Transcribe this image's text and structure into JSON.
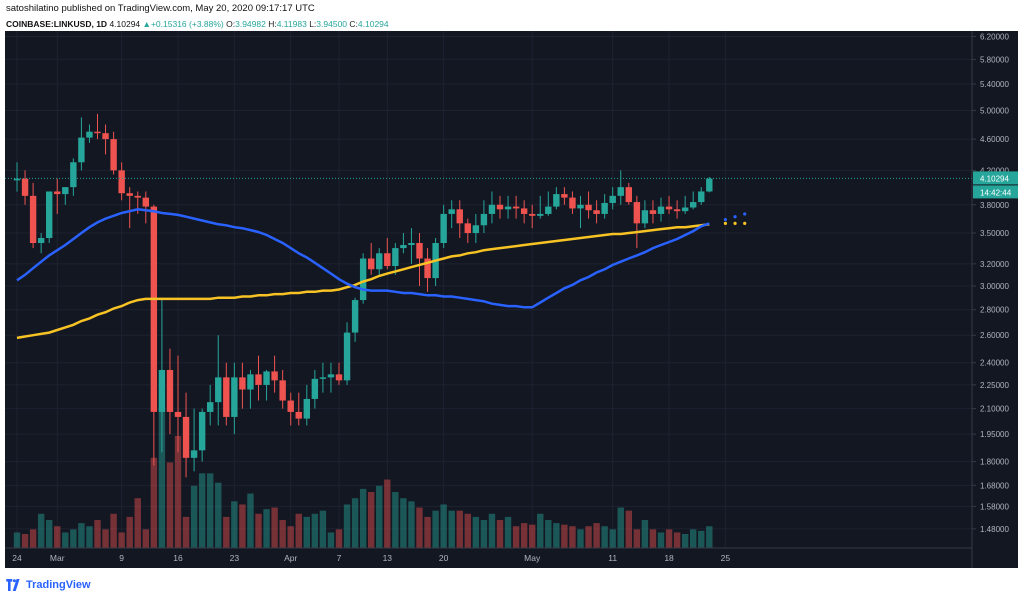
{
  "header": {
    "publisher_line": "satoshilatino published on TradingView.com, May 20, 2020 09:17:17 UTC",
    "symbol": "COINBASE:LINKUSD, 1D",
    "last": "4.10294",
    "change": "+0.15316 (+3.88%)",
    "o_label": "O:",
    "o_value": "3.94982",
    "h_label": "H:",
    "h_value": "4.11983",
    "l_label": "L:",
    "l_value": "3.94500",
    "c_label": "C:",
    "c_value": "4.10294"
  },
  "footer": {
    "brand": "TradingView"
  },
  "colors": {
    "background": "#131722",
    "up": "#26a69a",
    "down": "#ef5350",
    "ma_fast": "#2962ff",
    "ma_slow": "#f7c324",
    "price_line": "#26a69a",
    "axis_text": "#b2b5be"
  },
  "price_badge": {
    "price": "4.10294",
    "countdown": "14:42:44"
  },
  "chart_data": {
    "type": "candlestick",
    "symbol": "COINBASE:LINKUSD",
    "interval": "1D",
    "y_scale": "log",
    "ylim": [
      1.4,
      6.3
    ],
    "y_ticks": [
      "6.20000",
      "5.80000",
      "5.40000",
      "5.00000",
      "4.60000",
      "4.20000",
      "3.80000",
      "3.50000",
      "3.20000",
      "3.00000",
      "2.80000",
      "2.60000",
      "2.40000",
      "2.25000",
      "2.10000",
      "1.95000",
      "1.80000",
      "1.68000",
      "1.58000",
      "1.48000"
    ],
    "x_ticks": [
      "24",
      "Mar",
      "9",
      "16",
      "23",
      "Apr",
      "7",
      "13",
      "20",
      "May",
      "11",
      "18",
      "25"
    ],
    "x_tick_day_index": [
      0,
      5,
      13,
      20,
      27,
      34,
      40,
      46,
      53,
      64,
      74,
      81,
      88
    ],
    "dates": [
      "02-24",
      "02-25",
      "02-26",
      "02-27",
      "02-28",
      "02-29",
      "03-01",
      "03-02",
      "03-03",
      "03-04",
      "03-05",
      "03-06",
      "03-07",
      "03-08",
      "03-09",
      "03-10",
      "03-11",
      "03-12",
      "03-13",
      "03-14",
      "03-15",
      "03-16",
      "03-17",
      "03-18",
      "03-19",
      "03-20",
      "03-21",
      "03-22",
      "03-23",
      "03-24",
      "03-25",
      "03-26",
      "03-27",
      "03-28",
      "03-29",
      "03-30",
      "03-31",
      "04-01",
      "04-02",
      "04-03",
      "04-04",
      "04-05",
      "04-06",
      "04-07",
      "04-08",
      "04-09",
      "04-10",
      "04-11",
      "04-12",
      "04-13",
      "04-14",
      "04-15",
      "04-16",
      "04-17",
      "04-18",
      "04-19",
      "04-20",
      "04-21",
      "04-22",
      "04-23",
      "04-24",
      "04-25",
      "04-26",
      "04-27",
      "04-28",
      "04-29",
      "04-30",
      "05-01",
      "05-02",
      "05-03",
      "05-04",
      "05-05",
      "05-06",
      "05-07",
      "05-08",
      "05-09",
      "05-10",
      "05-11",
      "05-12",
      "05-13",
      "05-14",
      "05-15",
      "05-16",
      "05-17",
      "05-18",
      "05-19",
      "05-20"
    ],
    "open": [
      4.08,
      4.1,
      3.9,
      3.4,
      3.45,
      3.95,
      3.92,
      4.0,
      4.3,
      4.62,
      4.7,
      4.68,
      4.6,
      4.2,
      3.93,
      3.9,
      3.88,
      3.78,
      2.08,
      2.35,
      2.08,
      2.05,
      1.82,
      1.86,
      2.08,
      2.14,
      2.3,
      2.05,
      2.3,
      2.22,
      2.32,
      2.25,
      2.34,
      2.28,
      2.15,
      2.08,
      2.04,
      2.16,
      2.29,
      2.3,
      2.32,
      2.28,
      2.62,
      2.88,
      3.25,
      3.15,
      3.3,
      3.18,
      3.35,
      3.38,
      3.4,
      3.25,
      3.07,
      3.4,
      3.7,
      3.75,
      3.6,
      3.5,
      3.58,
      3.7,
      3.8,
      3.75,
      3.78,
      3.76,
      3.7,
      3.68,
      3.7,
      3.78,
      3.92,
      3.88,
      3.76,
      3.8,
      3.74,
      3.7,
      3.82,
      3.9,
      4.0,
      3.83,
      3.6,
      3.74,
      3.7,
      3.78,
      3.75,
      3.73,
      3.77,
      3.83,
      3.95
    ],
    "high": [
      4.3,
      4.2,
      4.05,
      3.5,
      3.95,
      4.1,
      4.0,
      4.35,
      4.9,
      4.8,
      4.95,
      4.8,
      4.7,
      4.3,
      4.0,
      3.95,
      3.95,
      3.8,
      2.9,
      2.5,
      2.45,
      2.2,
      2.1,
      2.1,
      2.25,
      2.6,
      2.4,
      2.4,
      2.4,
      2.35,
      2.45,
      2.35,
      2.45,
      2.35,
      2.2,
      2.2,
      2.25,
      2.35,
      2.4,
      2.4,
      2.4,
      2.7,
      2.9,
      3.3,
      3.4,
      3.35,
      3.45,
      3.4,
      3.5,
      3.55,
      3.5,
      3.35,
      3.45,
      3.8,
      3.85,
      3.85,
      3.65,
      3.7,
      3.85,
      3.95,
      3.9,
      3.9,
      3.9,
      3.85,
      3.8,
      3.9,
      3.95,
      4.0,
      4.0,
      3.95,
      3.9,
      3.95,
      3.85,
      3.92,
      4.0,
      4.2,
      4.05,
      3.9,
      3.85,
      3.85,
      3.88,
      3.9,
      3.85,
      3.9,
      3.95,
      4.0,
      4.12
    ],
    "low": [
      3.95,
      3.8,
      3.35,
      3.3,
      3.4,
      3.7,
      3.8,
      3.9,
      4.2,
      4.55,
      4.6,
      4.4,
      4.15,
      3.85,
      3.55,
      3.7,
      3.6,
      1.78,
      1.85,
      1.95,
      1.85,
      1.72,
      1.75,
      1.8,
      2.0,
      2.0,
      2.0,
      1.95,
      2.1,
      2.1,
      2.15,
      2.15,
      2.2,
      2.1,
      2.0,
      2.0,
      2.0,
      2.1,
      2.2,
      2.2,
      2.25,
      2.25,
      2.55,
      2.85,
      3.1,
      3.1,
      3.15,
      3.1,
      3.3,
      3.2,
      3.0,
      2.95,
      3.0,
      3.35,
      3.55,
      3.45,
      3.4,
      3.4,
      3.5,
      3.6,
      3.65,
      3.65,
      3.65,
      3.6,
      3.55,
      3.65,
      3.68,
      3.75,
      3.8,
      3.7,
      3.55,
      3.65,
      3.6,
      3.65,
      3.75,
      3.8,
      3.8,
      3.35,
      3.55,
      3.6,
      3.62,
      3.7,
      3.65,
      3.7,
      3.75,
      3.8,
      3.94
    ],
    "close": [
      4.1,
      3.9,
      3.4,
      3.45,
      3.95,
      3.92,
      4.0,
      4.3,
      4.62,
      4.7,
      4.68,
      4.6,
      4.2,
      3.93,
      3.9,
      3.88,
      3.78,
      2.08,
      2.35,
      2.08,
      2.05,
      1.82,
      1.86,
      2.08,
      2.14,
      2.3,
      2.05,
      2.3,
      2.22,
      2.32,
      2.25,
      2.34,
      2.28,
      2.15,
      2.08,
      2.04,
      2.16,
      2.29,
      2.3,
      2.32,
      2.28,
      2.62,
      2.88,
      3.25,
      3.15,
      3.3,
      3.18,
      3.35,
      3.38,
      3.4,
      3.25,
      3.07,
      3.4,
      3.7,
      3.75,
      3.6,
      3.5,
      3.58,
      3.7,
      3.8,
      3.75,
      3.78,
      3.76,
      3.7,
      3.68,
      3.7,
      3.78,
      3.92,
      3.88,
      3.76,
      3.8,
      3.74,
      3.7,
      3.82,
      3.9,
      4.0,
      3.83,
      3.6,
      3.74,
      3.7,
      3.78,
      3.75,
      3.73,
      3.77,
      3.83,
      3.95,
      4.1
    ],
    "volume": [
      10,
      9,
      12,
      22,
      18,
      14,
      10,
      12,
      16,
      14,
      18,
      12,
      22,
      10,
      20,
      32,
      12,
      58,
      90,
      55,
      72,
      20,
      40,
      48,
      48,
      42,
      20,
      30,
      28,
      35,
      22,
      25,
      26,
      18,
      14,
      22,
      20,
      22,
      24,
      10,
      12,
      28,
      32,
      38,
      36,
      40,
      44,
      36,
      32,
      30,
      26,
      20,
      24,
      28,
      24,
      24,
      22,
      20,
      18,
      22,
      18,
      20,
      14,
      16,
      15,
      22,
      18,
      16,
      15,
      14,
      12,
      14,
      16,
      14,
      12,
      26,
      24,
      12,
      18,
      12,
      10,
      12,
      10,
      9,
      12,
      11,
      14
    ],
    "ma_fast": [
      3.05,
      3.1,
      3.16,
      3.22,
      3.28,
      3.33,
      3.38,
      3.44,
      3.5,
      3.56,
      3.61,
      3.65,
      3.68,
      3.71,
      3.73,
      3.75,
      3.74,
      3.73,
      3.71,
      3.7,
      3.69,
      3.67,
      3.65,
      3.63,
      3.61,
      3.59,
      3.58,
      3.56,
      3.55,
      3.53,
      3.51,
      3.48,
      3.44,
      3.4,
      3.35,
      3.3,
      3.26,
      3.21,
      3.16,
      3.11,
      3.06,
      3.02,
      2.99,
      2.97,
      2.96,
      2.96,
      2.96,
      2.95,
      2.94,
      2.94,
      2.93,
      2.92,
      2.92,
      2.91,
      2.91,
      2.9,
      2.89,
      2.88,
      2.87,
      2.85,
      2.84,
      2.83,
      2.83,
      2.82,
      2.82,
      2.86,
      2.9,
      2.94,
      2.98,
      3.01,
      3.05,
      3.08,
      3.12,
      3.15,
      3.19,
      3.22,
      3.25,
      3.28,
      3.31,
      3.35,
      3.38,
      3.41,
      3.44,
      3.48,
      3.52,
      3.57,
      3.6
    ],
    "ma_slow": [
      2.58,
      2.59,
      2.6,
      2.61,
      2.62,
      2.64,
      2.66,
      2.68,
      2.71,
      2.73,
      2.76,
      2.78,
      2.81,
      2.83,
      2.86,
      2.88,
      2.89,
      2.89,
      2.89,
      2.89,
      2.89,
      2.89,
      2.89,
      2.89,
      2.89,
      2.9,
      2.9,
      2.9,
      2.91,
      2.91,
      2.92,
      2.92,
      2.93,
      2.93,
      2.94,
      2.94,
      2.95,
      2.95,
      2.96,
      2.96,
      2.97,
      2.99,
      3.01,
      3.04,
      3.06,
      3.09,
      3.11,
      3.13,
      3.15,
      3.17,
      3.19,
      3.21,
      3.23,
      3.25,
      3.27,
      3.28,
      3.3,
      3.31,
      3.33,
      3.34,
      3.35,
      3.36,
      3.37,
      3.38,
      3.39,
      3.4,
      3.41,
      3.42,
      3.43,
      3.44,
      3.45,
      3.46,
      3.47,
      3.48,
      3.49,
      3.49,
      3.5,
      3.51,
      3.52,
      3.53,
      3.54,
      3.55,
      3.56,
      3.56,
      3.57,
      3.58,
      3.59
    ],
    "ma_fast_projection": [
      3.64,
      3.67,
      3.7
    ],
    "ma_slow_projection": [
      3.6,
      3.6,
      3.6
    ],
    "last_price": 4.10294
  }
}
